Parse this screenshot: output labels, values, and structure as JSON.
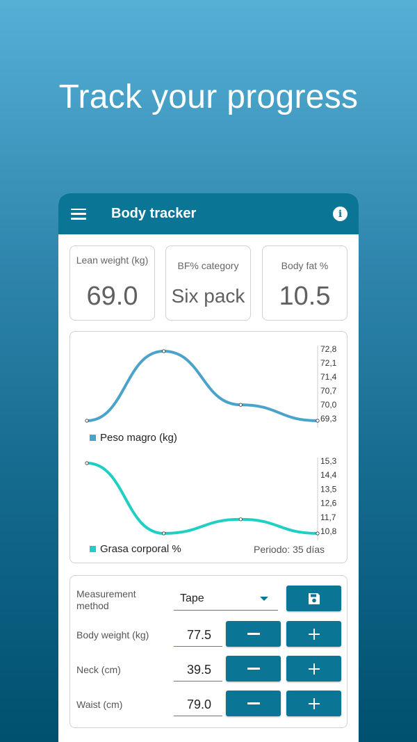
{
  "headline": "Track your progress",
  "appbar": {
    "title": "Body tracker"
  },
  "stats": [
    {
      "label": "Lean weight (kg)",
      "value": "69.0"
    },
    {
      "label": "BF% category",
      "value": "Six pack"
    },
    {
      "label": "Body fat %",
      "value": "10.5"
    }
  ],
  "chart_data": [
    {
      "type": "line",
      "series": [
        {
          "name": "Peso magro (kg)",
          "values": [
            69.3,
            72.8,
            70.1,
            69.3
          ],
          "color": "#4ca3c9"
        }
      ],
      "x": [
        1,
        2,
        3,
        4
      ],
      "yticks": [
        "72,8",
        "72,1",
        "71,4",
        "70,7",
        "70,0",
        "69,3"
      ],
      "ylim": [
        69.3,
        72.8
      ],
      "legend": "bottom-left"
    },
    {
      "type": "line",
      "series": [
        {
          "name": "Grasa corporal %",
          "values": [
            15.3,
            10.8,
            11.7,
            10.8
          ],
          "color": "#1fcfc3"
        }
      ],
      "x": [
        1,
        2,
        3,
        4
      ],
      "yticks": [
        "15,3",
        "14,4",
        "13,5",
        "12,6",
        "11,7",
        "10,8"
      ],
      "ylim": [
        10.8,
        15.3
      ],
      "legend": "bottom-left",
      "period": "Periodo: 35 días"
    }
  ],
  "form": {
    "method_label": "Measurement method",
    "method_value": "Tape",
    "rows": [
      {
        "label": "Body weight (kg)",
        "value": "77.5"
      },
      {
        "label": "Neck (cm)",
        "value": "39.5"
      },
      {
        "label": "Waist (cm)",
        "value": "79.0"
      }
    ]
  }
}
